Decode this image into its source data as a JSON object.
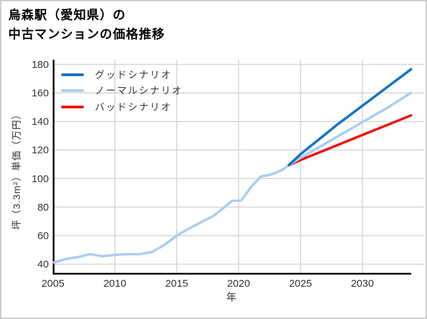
{
  "window": {
    "background": "#ffffff",
    "border_color": "#cccccc"
  },
  "header": {
    "title_line1": "烏森駅（愛知県）の",
    "title_line2": "中古マンションの価格推移"
  },
  "legend": {
    "items": [
      {
        "label": "グッドシナリオ",
        "color": "#1273c8"
      },
      {
        "label": "ノーマルシナリオ",
        "color": "#a9cdf2"
      },
      {
        "label": "バッドシナリオ",
        "color": "#ee1111"
      }
    ]
  },
  "chart_data": {
    "type": "line",
    "title": "烏森駅（愛知県）の中古マンションの価格推移",
    "xlabel": "年",
    "ylabel": "坪（3.3m²）単価（万円）",
    "xlim": [
      2005,
      2034
    ],
    "ylim": [
      33.3,
      183.3
    ],
    "x_ticks": [
      2005,
      2010,
      2015,
      2020,
      2025,
      2030
    ],
    "y_ticks": [
      40,
      60,
      80,
      100,
      120,
      140,
      160,
      180
    ],
    "grid": true,
    "grid_color": "#d6d6d6",
    "spine_color": "#000000",
    "tick_label_color": "#333333",
    "legend_position": "upper-left",
    "series": [
      {
        "name": "price-history",
        "color": "#a9cdf2",
        "width": 3.6,
        "x": [
          2005,
          2006,
          2007,
          2008,
          2009,
          2010,
          2011,
          2012,
          2013,
          2014,
          2015,
          2016,
          2017,
          2018,
          2019,
          2019.5,
          2020.2,
          2021,
          2021.8,
          2022.5,
          2023,
          2023.5,
          2024
        ],
        "values": [
          41,
          43.5,
          45,
          47,
          45.5,
          46.5,
          47,
          47,
          48.5,
          53.5,
          60,
          65,
          69.5,
          74,
          81,
          84.5,
          84.5,
          94,
          101.5,
          102.5,
          104,
          106,
          109
        ]
      },
      {
        "name": "バッドシナリオ",
        "color": "#ee1111",
        "width": 3.6,
        "x": [
          2024,
          2025,
          2026,
          2027,
          2028,
          2029,
          2030,
          2031,
          2032,
          2033,
          2034
        ],
        "values": [
          109,
          113,
          116.5,
          120,
          123.5,
          127,
          130.5,
          134,
          137.5,
          141,
          144.5
        ]
      },
      {
        "name": "ノーマルシナリオ",
        "color": "#a9cdf2",
        "width": 3.6,
        "x": [
          2024,
          2025,
          2026,
          2027,
          2028,
          2029,
          2030,
          2031,
          2032,
          2033,
          2034
        ],
        "values": [
          109,
          114.5,
          119.5,
          124.5,
          129.5,
          134.5,
          139.5,
          144.5,
          149.5,
          155,
          160.5
        ]
      },
      {
        "name": "グッドシナリオ",
        "color": "#1273c8",
        "width": 3.6,
        "x": [
          2024,
          2025,
          2026,
          2027,
          2028,
          2029,
          2030,
          2031,
          2032,
          2033,
          2034
        ],
        "values": [
          109,
          117,
          124,
          131,
          138,
          144.5,
          151,
          157.5,
          164,
          170.5,
          177
        ]
      }
    ]
  }
}
